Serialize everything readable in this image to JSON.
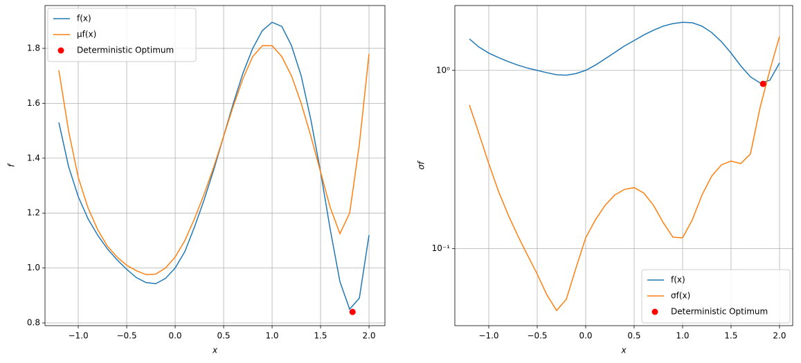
{
  "chart_data": [
    {
      "type": "line",
      "xlabel": "x",
      "ylabel": "f",
      "xlim": [
        -1.343,
        2.164
      ],
      "ylim": [
        0.79,
        1.956
      ],
      "yscale": "linear",
      "grid": true,
      "legend": "upper left",
      "xticks": [
        {
          "value": -1,
          "label": "−1.0"
        },
        {
          "value": -0.5,
          "label": "−0.5"
        },
        {
          "value": 0,
          "label": "0.0"
        },
        0.5,
        {
          "value": 1,
          "label": "1.0"
        },
        1.5,
        {
          "value": 2,
          "label": "2.0"
        }
      ],
      "yticks": [
        0.8,
        {
          "value": 1,
          "label": "1.0"
        },
        1.2,
        1.4,
        1.6,
        1.8
      ],
      "x": [
        -1.2,
        -1.1,
        -1.0,
        -0.9,
        -0.8,
        -0.7,
        -0.6,
        -0.5,
        -0.4,
        -0.3,
        -0.2,
        -0.1,
        0.0,
        0.1,
        0.2,
        0.3,
        0.4,
        0.5,
        0.6,
        0.7,
        0.8,
        0.9,
        1.0,
        1.1,
        1.2,
        1.3,
        1.4,
        1.5,
        1.6,
        1.7,
        1.8,
        1.9,
        2.0
      ],
      "series": [
        {
          "name": "f(x)",
          "color": "#1f77b4",
          "kind": "line",
          "values": [
            1.53,
            1.37,
            1.26,
            1.18,
            1.12,
            1.07,
            1.03,
            0.995,
            0.965,
            0.947,
            0.943,
            0.962,
            1.0,
            1.06,
            1.15,
            1.25,
            1.36,
            1.48,
            1.6,
            1.71,
            1.8,
            1.865,
            1.895,
            1.88,
            1.81,
            1.7,
            1.54,
            1.35,
            1.14,
            0.95,
            0.85,
            0.89,
            1.12
          ]
        },
        {
          "name": "μf(x)",
          "color": "#ff7f0e",
          "kind": "line",
          "values": [
            1.72,
            1.5,
            1.33,
            1.22,
            1.14,
            1.08,
            1.04,
            1.01,
            0.99,
            0.976,
            0.978,
            1.0,
            1.04,
            1.1,
            1.18,
            1.27,
            1.37,
            1.48,
            1.59,
            1.69,
            1.77,
            1.81,
            1.81,
            1.77,
            1.7,
            1.6,
            1.48,
            1.35,
            1.22,
            1.125,
            1.2,
            1.45,
            1.78
          ]
        },
        {
          "name": "Deterministic Optimum",
          "color": "#ff0000",
          "kind": "scatter",
          "x": [
            1.83
          ],
          "values": [
            0.84
          ]
        }
      ]
    },
    {
      "type": "line",
      "xlabel": "x",
      "ylabel": "σf",
      "xlim": [
        -1.35,
        2.136
      ],
      "ylim": [
        0.037,
        2.31
      ],
      "yscale": "log",
      "grid": true,
      "legend": "lower right",
      "xticks": [
        {
          "value": -1,
          "label": "−1.0"
        },
        {
          "value": -0.5,
          "label": "−0.5"
        },
        {
          "value": 0,
          "label": "0.0"
        },
        0.5,
        {
          "value": 1,
          "label": "1.0"
        },
        1.5,
        {
          "value": 2,
          "label": "2.0"
        }
      ],
      "yticks": [
        {
          "value": 0.1,
          "label": "10⁻¹"
        },
        {
          "value": 1,
          "label": "10⁰"
        }
      ],
      "x": [
        -1.2,
        -1.1,
        -1.0,
        -0.9,
        -0.8,
        -0.7,
        -0.6,
        -0.5,
        -0.4,
        -0.3,
        -0.2,
        -0.1,
        0.0,
        0.1,
        0.2,
        0.3,
        0.4,
        0.5,
        0.6,
        0.7,
        0.8,
        0.9,
        1.0,
        1.1,
        1.2,
        1.3,
        1.4,
        1.5,
        1.6,
        1.7,
        1.8,
        1.9,
        2.0
      ],
      "series": [
        {
          "name": "f(x)",
          "color": "#1f77b4",
          "kind": "line",
          "values": [
            1.5,
            1.35,
            1.25,
            1.18,
            1.12,
            1.07,
            1.03,
            1.0,
            0.97,
            0.945,
            0.94,
            0.96,
            1.0,
            1.07,
            1.16,
            1.26,
            1.37,
            1.47,
            1.58,
            1.68,
            1.77,
            1.83,
            1.86,
            1.85,
            1.77,
            1.63,
            1.45,
            1.25,
            1.06,
            0.92,
            0.85,
            0.88,
            1.1
          ]
        },
        {
          "name": "σf(x)",
          "color": "#ff7f0e",
          "kind": "line",
          "values": [
            0.64,
            0.44,
            0.3,
            0.21,
            0.155,
            0.118,
            0.092,
            0.072,
            0.055,
            0.045,
            0.052,
            0.078,
            0.115,
            0.145,
            0.175,
            0.2,
            0.215,
            0.22,
            0.205,
            0.175,
            0.14,
            0.116,
            0.115,
            0.145,
            0.2,
            0.255,
            0.295,
            0.31,
            0.3,
            0.34,
            0.62,
            1.0,
            1.55
          ]
        },
        {
          "name": "Deterministic Optimum",
          "color": "#ff0000",
          "kind": "scatter",
          "x": [
            1.83
          ],
          "values": [
            0.84
          ]
        }
      ]
    }
  ]
}
